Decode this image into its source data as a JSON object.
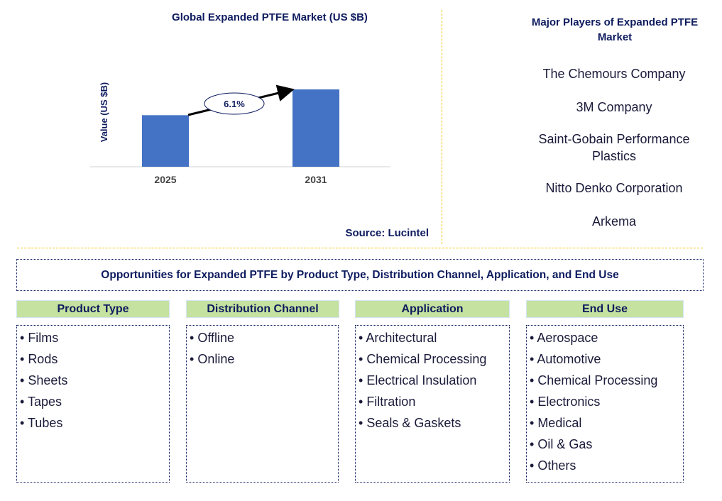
{
  "chart_data": {
    "type": "bar",
    "title": "Global Expanded PTFE Market (US $B)",
    "xlabel": "",
    "ylabel": "Value (US $B)",
    "categories": [
      "2025",
      "2031"
    ],
    "values": [
      2.0,
      3.0
    ],
    "ylim": [
      0,
      3.0
    ],
    "annotation": "6.1%",
    "bar_color": "#4472c4",
    "grid": false
  },
  "source": "Source: Lucintel",
  "players": {
    "title": "Major Players of Expanded PTFE Market",
    "items": [
      "The Chemours Company",
      "3M Company",
      "Saint-Gobain Performance Plastics",
      "Nitto Denko Corporation",
      "Arkema"
    ]
  },
  "opportunities": {
    "title": "Opportunities for Expanded PTFE by Product Type, Distribution Channel, Application, and End Use",
    "categories": [
      {
        "name": "Product Type",
        "items": [
          "Films",
          "Rods",
          "Sheets",
          "Tapes",
          "Tubes"
        ]
      },
      {
        "name": "Distribution Channel",
        "items": [
          "Offline",
          "Online"
        ]
      },
      {
        "name": "Application",
        "items": [
          "Architectural",
          "Chemical Processing",
          "Electrical Insulation",
          "Filtration",
          "Seals & Gaskets"
        ]
      },
      {
        "name": "End Use",
        "items": [
          "Aerospace",
          "Automotive",
          "Chemical Processing",
          "Electronics",
          "Medical",
          "Oil & Gas",
          "Others"
        ]
      }
    ]
  }
}
